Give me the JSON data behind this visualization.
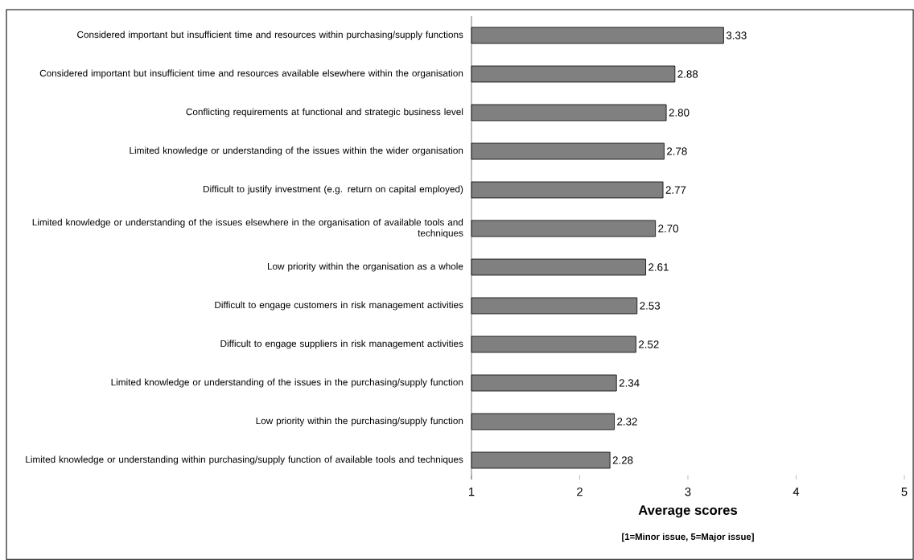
{
  "chart_data": {
    "type": "bar",
    "orientation": "horizontal",
    "xlabel": "Average scores",
    "annotations": [
      "[1=Minor issue, 5=Major issue]"
    ],
    "categories": [
      "Considered important but insufficient time and resources within purchasing/supply functions",
      "Considered important but insufficient time and resources available elsewhere within the organisation",
      "Conflicting requirements at functional and strategic business level",
      "Limited knowledge or understanding of the issues within the wider organisation",
      "Difficult to justify investment (e.g. return on capital employed)",
      "Limited knowledge or understanding of the issues elsewhere in the organisation of available tools and techniques",
      "Low priority within the organisation as a whole",
      "Difficult to engage customers in risk management activities",
      "Difficult to engage suppliers in risk management activities",
      "Limited knowledge or understanding of the issues in the purchasing/supply function",
      "Low priority within the purchasing/supply function",
      "Limited knowledge or understanding within purchasing/supply function of available tools and techniques"
    ],
    "values": [
      3.33,
      2.88,
      2.8,
      2.78,
      2.77,
      2.7,
      2.61,
      2.53,
      2.52,
      2.34,
      2.32,
      2.28
    ],
    "value_labels": [
      "3.33",
      "2.88",
      "2.80",
      "2.78",
      "2.77",
      "2.70",
      "2.61",
      "2.53",
      "2.52",
      "2.34",
      "2.32",
      "2.28"
    ],
    "color": "#808080",
    "xlim": [
      1,
      5
    ],
    "xticks": [
      1,
      2,
      3,
      4,
      5
    ],
    "grid": false
  }
}
